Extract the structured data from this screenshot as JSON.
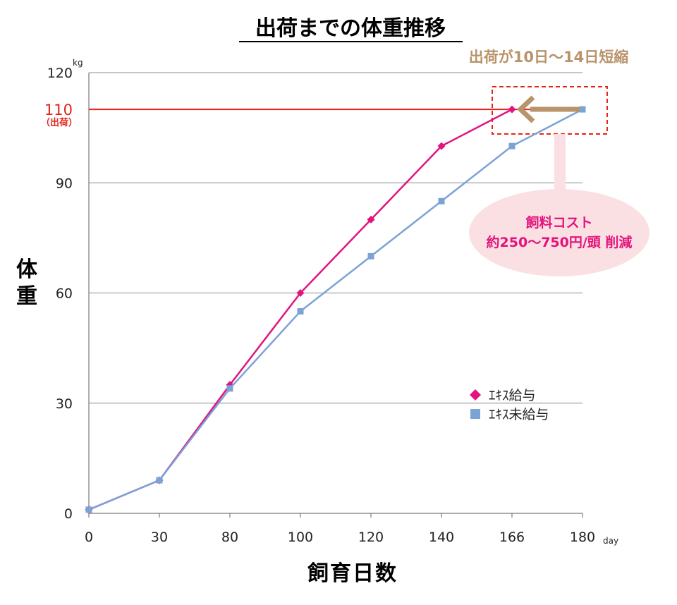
{
  "chart_data": {
    "type": "line",
    "title": "出荷までの体重推移",
    "xlabel": "飼育日数",
    "ylabel": "体重",
    "categories": [
      "0",
      "30",
      "80",
      "100",
      "120",
      "140",
      "166",
      "180"
    ],
    "x_unit": "day",
    "y_unit": "kg",
    "ylim": [
      0,
      120
    ],
    "yticks": [
      "0",
      "30",
      "60",
      "90",
      "120"
    ],
    "grid": true,
    "legend_position": "right-middle",
    "series": [
      {
        "name": "ｴｷｽ給与",
        "color": "#e0157f",
        "marker": "diamond",
        "values": [
          1,
          9,
          35,
          60,
          80,
          100,
          110,
          null
        ]
      },
      {
        "name": "ｴｷｽ未給与",
        "color": "#7ba3d6",
        "marker": "square",
        "values": [
          1,
          9,
          34,
          55,
          70,
          85,
          100,
          110
        ]
      }
    ],
    "shipping_line": {
      "value": 110,
      "value_label": "110",
      "label": "（出荷）",
      "color": "#e8231a"
    },
    "annotations": {
      "callout": "出荷が10日〜14日短縮",
      "callout_color": "#b9936a",
      "bubble_line1": "飼料コスト",
      "bubble_line2": "約250〜750円/頭 削減",
      "bubble_fill": "#fbe0e3",
      "bubble_text_color": "#e3137c",
      "arrow_color": "#b9936a",
      "box_color": "#e8231a"
    }
  }
}
